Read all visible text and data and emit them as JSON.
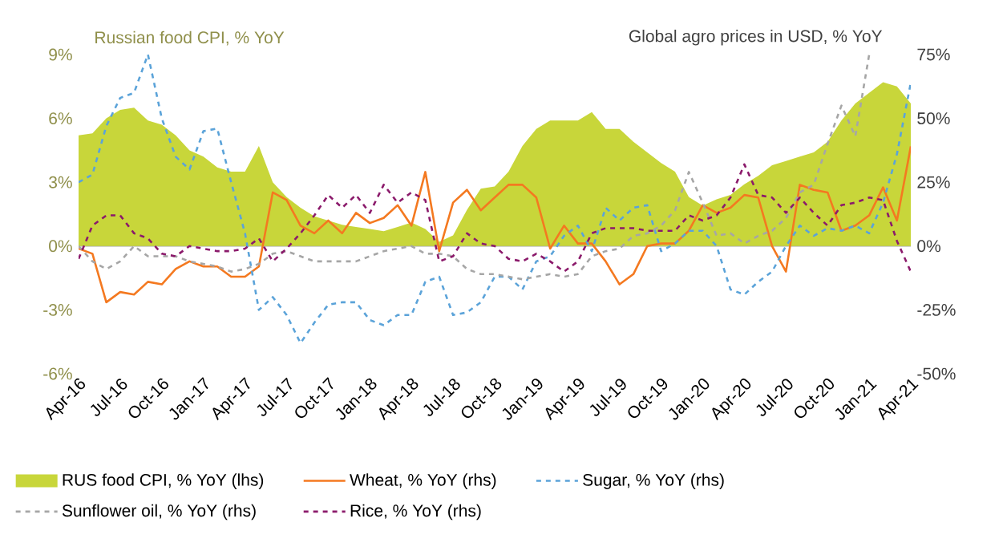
{
  "chart_data": {
    "type": "line",
    "ylabel": "Russian food CPI, % YoY",
    "y2label": "Global agro prices in USD, % YoY",
    "categories": [
      "Apr-16",
      null,
      null,
      "Jul-16",
      null,
      null,
      "Oct-16",
      null,
      null,
      "Jan-17",
      null,
      null,
      "Apr-17",
      null,
      null,
      "Jul-17",
      null,
      null,
      "Oct-17",
      null,
      null,
      "Jan-18",
      null,
      null,
      "Apr-18",
      null,
      null,
      "Jul-18",
      null,
      null,
      "Oct-18",
      null,
      null,
      "Jan-19",
      null,
      null,
      "Apr-19",
      null,
      null,
      "Jul-19",
      null,
      null,
      "Oct-19",
      null,
      null,
      "Jan-20",
      null,
      null,
      "Apr-20",
      null,
      null,
      "Jul-20",
      null,
      null,
      "Oct-20",
      null,
      null,
      "Jan-21",
      null,
      null,
      "Apr-21"
    ],
    "series": [
      {
        "name": "RUS food CPI, % YoY (lhs)",
        "type": "area",
        "color": "#c8d63a",
        "values": [
          5.2,
          5.3,
          6.0,
          6.4,
          6.5,
          5.9,
          5.7,
          5.2,
          4.5,
          4.2,
          3.7,
          3.5,
          3.5,
          4.7,
          3.0,
          2.3,
          1.8,
          1.4,
          1.2,
          1.0,
          0.9,
          0.8,
          0.7,
          0.9,
          1.1,
          0.8,
          0.2,
          0.5,
          1.7,
          2.7,
          2.8,
          3.5,
          4.7,
          5.5,
          5.9,
          5.9,
          5.9,
          6.3,
          5.5,
          5.5,
          4.9,
          4.4,
          3.9,
          3.5,
          2.3,
          1.9,
          2.2,
          2.4,
          2.9,
          3.3,
          3.8,
          4.0,
          4.2,
          4.4,
          4.9,
          5.9,
          6.7,
          7.2,
          7.7,
          7.5,
          6.7
        ]
      },
      {
        "name": "Wheat, % YoY (rhs)",
        "axis": "y2",
        "color": "#f47920",
        "line_style": "solid",
        "values": [
          -1,
          -3,
          -22,
          -18,
          -19,
          -14,
          -15,
          -9,
          -6,
          -8,
          -8,
          -12,
          -12,
          -8,
          21,
          18,
          8,
          5,
          10,
          5,
          13,
          9,
          11,
          16,
          8,
          29,
          -2,
          17,
          22,
          14,
          19,
          24,
          24,
          19,
          -1,
          8,
          1,
          1,
          -6,
          -15,
          -11,
          0,
          1,
          1,
          6,
          16,
          13,
          15,
          20,
          19,
          0,
          -10,
          24,
          22,
          21,
          6,
          8,
          12,
          23,
          10,
          39
        ]
      },
      {
        "name": "Sugar, % YoY (rhs)",
        "axis": "y2",
        "color": "#5ba3d9",
        "line_style": "dashed",
        "values": [
          25,
          28,
          47,
          58,
          60,
          75,
          50,
          35,
          30,
          45,
          46,
          25,
          5,
          -25,
          -20,
          -27,
          -38,
          -30,
          -23,
          -22,
          -22,
          -29,
          -31,
          -27,
          -27,
          -14,
          -12,
          -27,
          -26,
          -22,
          -12,
          -12,
          -17,
          -6,
          -4,
          4,
          8,
          -2,
          15,
          10,
          15,
          16,
          -2,
          1,
          6,
          6,
          0,
          -17,
          -19,
          -14,
          -10,
          0,
          8,
          4,
          7,
          6,
          8,
          5,
          17,
          36,
          64
        ]
      },
      {
        "name": "Sunflower oil, % YoY (rhs)",
        "axis": "y2",
        "color": "#a6a6a6",
        "line_style": "dashed",
        "values": [
          0,
          -6,
          -9,
          -6,
          0,
          -4,
          -4,
          -4,
          -6,
          -7,
          -8,
          -10,
          -9,
          -7,
          -3,
          -2,
          -4,
          -6,
          -6,
          -6,
          -6,
          -4,
          -2,
          -1,
          0,
          -3,
          -3,
          -4,
          -9,
          -11,
          -11,
          -12,
          -13,
          -12,
          -11,
          -12,
          -11,
          -4,
          -2,
          -1,
          4,
          5,
          8,
          14,
          29,
          17,
          4,
          5,
          1,
          4,
          6,
          11,
          21,
          24,
          40,
          55,
          43,
          75,
          null,
          null,
          null
        ]
      },
      {
        "name": "Rice, % YoY (rhs)",
        "axis": "y2",
        "color": "#8b1a6b",
        "line_style": "dashed",
        "values": [
          -5,
          8,
          12,
          12,
          5,
          3,
          -3,
          -4,
          0,
          -1,
          -2,
          -2,
          -1,
          3,
          -6,
          -1,
          5,
          12,
          20,
          15,
          20,
          13,
          24,
          17,
          21,
          18,
          -6,
          -4,
          5,
          1,
          0,
          -5,
          -6,
          -3,
          -6,
          -10,
          -6,
          5,
          7,
          7,
          7,
          6,
          6,
          6,
          12,
          10,
          12,
          19,
          32,
          20,
          19,
          13,
          19,
          13,
          8,
          16,
          17,
          19,
          18,
          2,
          -10
        ]
      }
    ],
    "ylim": [
      -6,
      9
    ],
    "yticks": [
      {
        "value": -6,
        "label": "-6%"
      },
      {
        "value": -3,
        "label": "-3%"
      },
      {
        "value": 0,
        "label": "0%"
      },
      {
        "value": 3,
        "label": "3%"
      },
      {
        "value": 6,
        "label": "6%"
      },
      {
        "value": 9,
        "label": "9%"
      }
    ],
    "y2lim": [
      -50,
      75
    ],
    "y2ticks": [
      {
        "value": -50,
        "label": "-50%"
      },
      {
        "value": -25,
        "label": "-25%"
      },
      {
        "value": 0,
        "label": "0%"
      },
      {
        "value": 25,
        "label": "25%"
      },
      {
        "value": 50,
        "label": "50%"
      },
      {
        "value": 75,
        "label": "75%"
      }
    ],
    "legend": "bottom"
  }
}
